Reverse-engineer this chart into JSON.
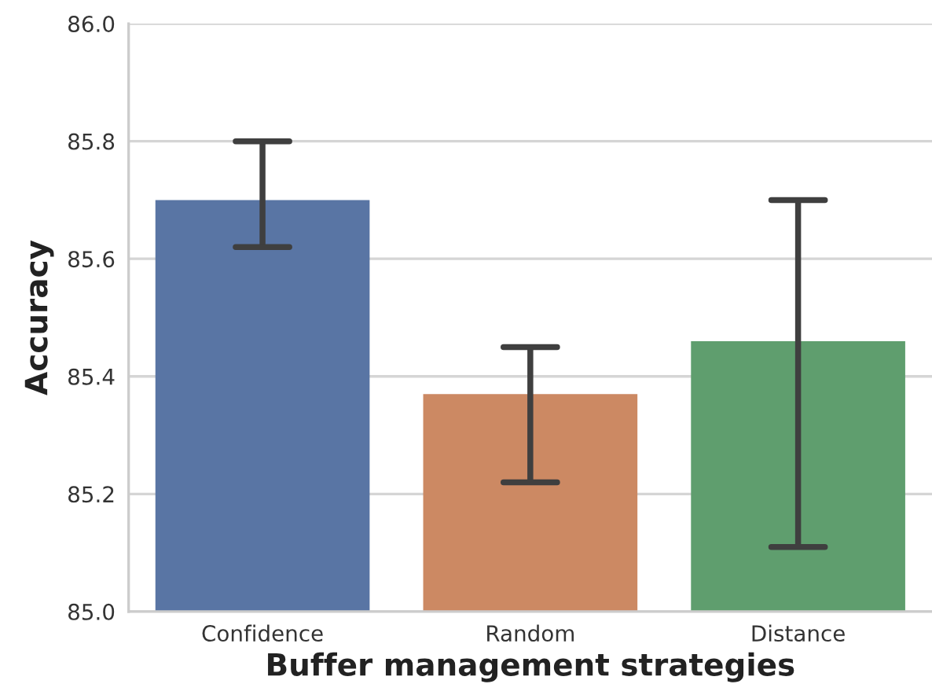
{
  "chart_data": {
    "type": "bar",
    "xlabel": "Buffer management strategies",
    "ylabel": "Accuracy",
    "categories": [
      "Confidence",
      "Random",
      "Distance"
    ],
    "values": [
      85.7,
      85.37,
      85.46
    ],
    "colors": [
      "#5975a4",
      "#cc8963",
      "#5f9e6e"
    ],
    "errors": [
      [
        85.62,
        85.8
      ],
      [
        85.22,
        85.45
      ],
      [
        85.11,
        85.7
      ]
    ],
    "ylim": [
      85.0,
      86.0
    ],
    "yticks": [
      {
        "value": 85.0,
        "label": "85.0"
      },
      {
        "value": 85.2,
        "label": "85.2"
      },
      {
        "value": 85.4,
        "label": "85.4"
      },
      {
        "value": 85.6,
        "label": "85.6"
      },
      {
        "value": 85.8,
        "label": "85.8"
      },
      {
        "value": 86.0,
        "label": "86.0"
      }
    ],
    "grid": "y"
  }
}
